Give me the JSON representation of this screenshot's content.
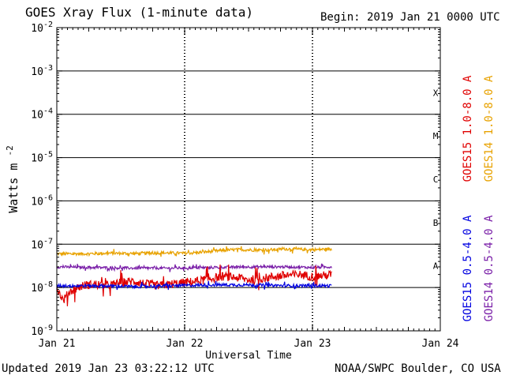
{
  "title": "GOES Xray Flux (1-minute data)",
  "begin_label": "Begin:  2019 Jan 21 0000 UTC",
  "updated_label": "Updated 2019 Jan 23 03:22:12 UTC",
  "credit_label": "NOAA/SWPC Boulder, CO USA",
  "chart_data": {
    "type": "line",
    "xlabel": "Universal Time",
    "ylabel": "Watts m",
    "ylabel_exp": "-2",
    "yscale": "log",
    "ylim": [
      1e-09,
      0.01
    ],
    "xlim_days": [
      0,
      3
    ],
    "x_ticks": [
      "Jan 21",
      "Jan 22",
      "Jan 23",
      "Jan 24"
    ],
    "y_ticks": [
      {
        "base": "10",
        "exp": "-2"
      },
      {
        "base": "10",
        "exp": "-3"
      },
      {
        "base": "10",
        "exp": "-4"
      },
      {
        "base": "10",
        "exp": "-5"
      },
      {
        "base": "10",
        "exp": "-6"
      },
      {
        "base": "10",
        "exp": "-7"
      },
      {
        "base": "10",
        "exp": "-8"
      },
      {
        "base": "10",
        "exp": "-9"
      }
    ],
    "flare_classes": [
      "X",
      "M",
      "C",
      "B",
      "A"
    ],
    "legend": {
      "right_outer": [
        {
          "label": "GOES14 1.0-8.0 A",
          "color": "#e8a200"
        },
        {
          "label": "GOES14 0.5-4.0 A",
          "color": "#7a1fa8"
        }
      ],
      "right_inner": [
        {
          "label": "GOES15 1.0-8.0 A",
          "color": "#e00000"
        },
        {
          "label": "GOES15 0.5-4.0 A",
          "color": "#0000e0"
        }
      ]
    },
    "series": [
      {
        "name": "GOES14 1.0-8.0 A",
        "color": "#e8a200",
        "x": [
          0,
          0.2,
          0.4,
          0.6,
          0.8,
          1.0,
          1.1,
          1.2,
          1.3,
          1.4,
          1.5,
          1.6,
          1.7,
          1.8,
          1.9,
          2.0,
          2.1,
          2.15
        ],
        "y": [
          6e-08,
          6e-08,
          6.2e-08,
          6.1e-08,
          6.3e-08,
          6.2e-08,
          6.4e-08,
          6.8e-08,
          7.2e-08,
          7.5e-08,
          7.4e-08,
          7.3e-08,
          7.5e-08,
          7.8e-08,
          7.6e-08,
          7.4e-08,
          7.7e-08,
          7.6e-08
        ]
      },
      {
        "name": "GOES14 0.5-4.0 A",
        "color": "#7a1fa8",
        "x": [
          0,
          0.3,
          0.6,
          0.9,
          1.2,
          1.5,
          1.8,
          2.0,
          2.15
        ],
        "y": [
          3e-08,
          2.9e-08,
          2.8e-08,
          2.8e-08,
          2.9e-08,
          3e-08,
          3e-08,
          2.9e-08,
          3e-08
        ]
      },
      {
        "name": "GOES15 1.0-8.0 A",
        "color": "#e00000",
        "x": [
          0,
          0.05,
          0.1,
          0.2,
          0.3,
          0.4,
          0.5,
          0.6,
          0.7,
          0.8,
          0.9,
          1.0,
          1.1,
          1.2,
          1.3,
          1.4,
          1.5,
          1.6,
          1.7,
          1.8,
          1.9,
          2.0,
          2.1,
          2.15
        ],
        "y": [
          1e-08,
          5e-09,
          8e-09,
          1.1e-08,
          1.2e-08,
          1.1e-08,
          1.3e-08,
          1.4e-08,
          1.2e-08,
          1.1e-08,
          1.2e-08,
          1.3e-08,
          1.4e-08,
          1.6e-08,
          1.8e-08,
          1.7e-08,
          1.5e-08,
          1.6e-08,
          1.8e-08,
          1.9e-08,
          2e-08,
          1.8e-08,
          1.9e-08,
          2e-08
        ]
      },
      {
        "name": "GOES15 0.5-4.0 A",
        "color": "#0000e0",
        "x": [
          0,
          0.3,
          0.6,
          0.9,
          1.2,
          1.5,
          1.8,
          2.0,
          2.15
        ],
        "y": [
          1.1e-08,
          1.1e-08,
          1.05e-08,
          1.1e-08,
          1.15e-08,
          1.15e-08,
          1.1e-08,
          1.1e-08,
          1.1e-08
        ]
      }
    ]
  }
}
